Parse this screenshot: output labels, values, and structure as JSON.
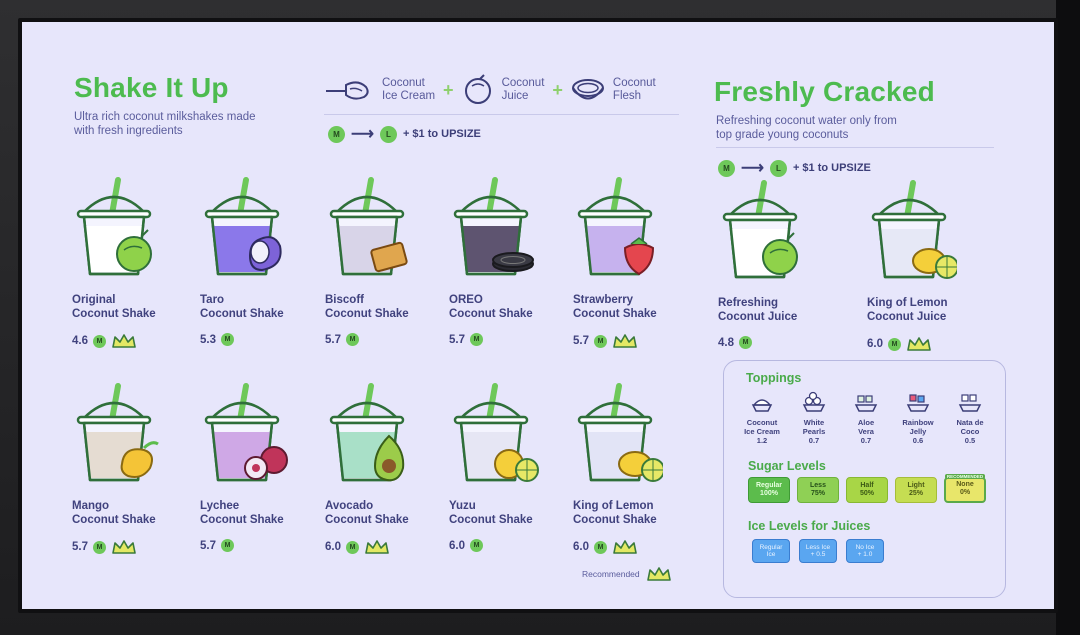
{
  "menu": {
    "shake_title": "Shake It Up",
    "shake_subtitle_1": "Ultra rich coconut milkshakes made",
    "shake_subtitle_2": "with fresh ingredients",
    "ingredients": [
      {
        "line1": "Coconut",
        "line2": "Ice Cream",
        "icon": "ice-cream-scoop-icon"
      },
      {
        "line1": "Coconut",
        "line2": "Juice",
        "icon": "coconut-icon"
      },
      {
        "line1": "Coconut",
        "line2": "Flesh",
        "icon": "coconut-half-icon"
      }
    ],
    "plus": "+",
    "upsize": {
      "m": "M",
      "l": "L",
      "arrow": "⟶",
      "text": "+ $1 to UPSIZE"
    },
    "juice_title": "Freshly Cracked",
    "juice_subtitle_1": "Refreshing coconut water only from",
    "juice_subtitle_2": "top grade young coconuts"
  },
  "shakes": [
    {
      "line1": "Original",
      "line2": "Coconut Shake",
      "price": "4.6",
      "recommended": true,
      "color": "#ffffff",
      "garnish": "coconut"
    },
    {
      "line1": "Taro",
      "line2": "Coconut Shake",
      "price": "5.3",
      "recommended": false,
      "color": "#8b78ea",
      "garnish": "taro"
    },
    {
      "line1": "Biscoff",
      "line2": "Coconut Shake",
      "price": "5.7",
      "recommended": false,
      "color": "#d8d4e8",
      "garnish": "biscuit"
    },
    {
      "line1": "OREO",
      "line2": "Coconut Shake",
      "price": "5.7",
      "recommended": false,
      "color": "#5e5470",
      "garnish": "oreo"
    },
    {
      "line1": "Strawberry",
      "line2": "Coconut Shake",
      "price": "5.7",
      "recommended": true,
      "color": "#c6b2ee",
      "garnish": "strawberry"
    },
    {
      "line1": "Mango",
      "line2": "Coconut Shake",
      "price": "5.7",
      "recommended": true,
      "color": "#e5dcd2",
      "garnish": "mango"
    },
    {
      "line1": "Lychee",
      "line2": "Coconut Shake",
      "price": "5.7",
      "recommended": false,
      "color": "#cfa8e6",
      "garnish": "lychee"
    },
    {
      "line1": "Avocado",
      "line2": "Coconut Shake",
      "price": "6.0",
      "recommended": true,
      "color": "#a9e0c8",
      "garnish": "avocado"
    },
    {
      "line1": "Yuzu",
      "line2": "Coconut Shake",
      "price": "6.0",
      "recommended": false,
      "color": "#e6e6f4",
      "garnish": "yuzu"
    },
    {
      "line1": "King of Lemon",
      "line2": "Coconut Shake",
      "price": "6.0",
      "recommended": true,
      "color": "#e2e4f6",
      "garnish": "lemon"
    }
  ],
  "juices": [
    {
      "line1": "Refreshing",
      "line2": "Coconut Juice",
      "price": "4.8",
      "recommended": false,
      "color": "#ffffff",
      "garnish": "coconut"
    },
    {
      "line1": "King of Lemon",
      "line2": "Coconut Juice",
      "price": "6.0",
      "recommended": true,
      "color": "#e6e8f6",
      "garnish": "lemon"
    }
  ],
  "price_badge": "M",
  "toppings": {
    "title": "Toppings",
    "items": [
      {
        "line1": "Coconut",
        "line2": "Ice Cream",
        "price": "1.2",
        "icon": "scoop-icon"
      },
      {
        "line1": "White",
        "line2": "Pearls",
        "price": "0.7",
        "icon": "pearls-icon"
      },
      {
        "line1": "Aloe",
        "line2": "Vera",
        "price": "0.7",
        "icon": "aloe-icon"
      },
      {
        "line1": "Rainbow",
        "line2": "Jelly",
        "price": "0.6",
        "icon": "jelly-icon"
      },
      {
        "line1": "Nata de",
        "line2": "Coco",
        "price": "0.5",
        "icon": "nata-icon"
      }
    ]
  },
  "sugar": {
    "title": "Sugar Levels",
    "levels": [
      {
        "line1": "Regular",
        "line2": "100%",
        "bg": "#5cbc4c",
        "fg": "#e8ffe0",
        "border": "#3f9a35"
      },
      {
        "line1": "Less",
        "line2": "75%",
        "bg": "#8fd055",
        "fg": "#26501a",
        "border": "#6fb23c"
      },
      {
        "line1": "Half",
        "line2": "50%",
        "bg": "#a8d646",
        "fg": "#3b5a14",
        "border": "#88b832"
      },
      {
        "line1": "Light",
        "line2": "25%",
        "bg": "#c5dd52",
        "fg": "#4a5a16",
        "border": "#a5bd3a"
      },
      {
        "line1": "None",
        "line2": "0%",
        "bg": "#e8e66a",
        "fg": "#5a5a18",
        "border": "#5aa94a"
      }
    ],
    "recommended_note": "RECOMMENDED"
  },
  "ice": {
    "title": "Ice Levels for Juices",
    "levels": [
      {
        "line1": "Regular",
        "line2": "Ice"
      },
      {
        "line1": "Less Ice",
        "line2": "+ 0.5"
      },
      {
        "line1": "No Ice",
        "line2": "+ 1.0"
      }
    ]
  },
  "recommended_label": "Recommended",
  "colors": {
    "accent_green": "#4dbb4f",
    "text_purple": "#40427e",
    "background": "#e7e6fb",
    "straw": "#6ec85a",
    "outline": "#2f6f3a"
  }
}
